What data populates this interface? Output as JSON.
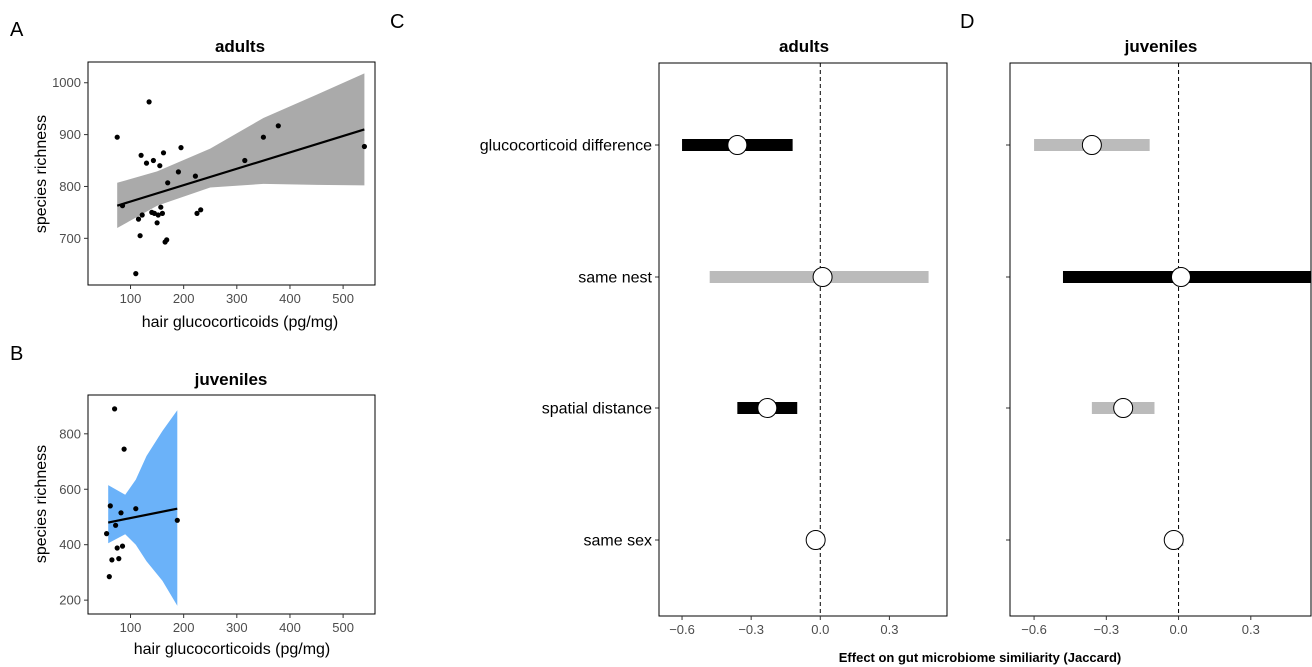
{
  "panel_labels": [
    "A",
    "B",
    "C",
    "D"
  ],
  "shared_xlabel": "Effect on gut microbiome similiarity (Jaccard)",
  "chart_data": [
    {
      "id": "A",
      "type": "scatter",
      "title": "adults",
      "xlabel": "hair glucocorticoids (pg/mg)",
      "ylabel": "species richness",
      "xlim": [
        20,
        560
      ],
      "ylim": [
        610,
        1040
      ],
      "xticks": [
        100,
        200,
        300,
        400,
        500
      ],
      "yticks": [
        700,
        800,
        900,
        1000
      ],
      "ribbon_color": "#aaaaaa",
      "points": [
        [
          75,
          895
        ],
        [
          85,
          763
        ],
        [
          110,
          632
        ],
        [
          115,
          737
        ],
        [
          118,
          705
        ],
        [
          120,
          860
        ],
        [
          122,
          745
        ],
        [
          130,
          845
        ],
        [
          135,
          963
        ],
        [
          140,
          750
        ],
        [
          143,
          850
        ],
        [
          145,
          748
        ],
        [
          150,
          730
        ],
        [
          152,
          745
        ],
        [
          155,
          840
        ],
        [
          157,
          760
        ],
        [
          160,
          748
        ],
        [
          162,
          865
        ],
        [
          165,
          693
        ],
        [
          168,
          697
        ],
        [
          170,
          807
        ],
        [
          190,
          828
        ],
        [
          195,
          875
        ],
        [
          222,
          820
        ],
        [
          225,
          748
        ],
        [
          232,
          755
        ],
        [
          315,
          850
        ],
        [
          350,
          895
        ],
        [
          378,
          917
        ],
        [
          540,
          877
        ]
      ],
      "fit": [
        [
          75,
          763
        ],
        [
          540,
          910
        ]
      ],
      "ribbon": [
        [
          75,
          720,
          807
        ],
        [
          150,
          763,
          829
        ],
        [
          250,
          798,
          873
        ],
        [
          350,
          805,
          932
        ],
        [
          450,
          803,
          977
        ],
        [
          540,
          802,
          1018
        ]
      ]
    },
    {
      "id": "B",
      "type": "scatter",
      "title": "juveniles",
      "xlabel": "hair glucocorticoids (pg/mg)",
      "ylabel": "species richness",
      "xlim": [
        20,
        560
      ],
      "ylim": [
        150,
        940
      ],
      "xticks": [
        100,
        200,
        300,
        400,
        500
      ],
      "yticks": [
        200,
        400,
        600,
        800
      ],
      "ribbon_color": "#6bb2f9",
      "points": [
        [
          55,
          440
        ],
        [
          60,
          285
        ],
        [
          62,
          540
        ],
        [
          65,
          345
        ],
        [
          70,
          890
        ],
        [
          72,
          470
        ],
        [
          75,
          388
        ],
        [
          78,
          350
        ],
        [
          82,
          515
        ],
        [
          85,
          395
        ],
        [
          88,
          745
        ],
        [
          110,
          530
        ],
        [
          188,
          488
        ]
      ],
      "fit": [
        [
          58,
          480
        ],
        [
          188,
          530
        ]
      ],
      "ribbon": [
        [
          58,
          405,
          615
        ],
        [
          90,
          438,
          580
        ],
        [
          110,
          400,
          635
        ],
        [
          130,
          340,
          720
        ],
        [
          160,
          270,
          810
        ],
        [
          188,
          180,
          885
        ]
      ]
    },
    {
      "id": "C",
      "type": "scatter",
      "title": "adults",
      "xlim": [
        -0.7,
        0.55
      ],
      "xticks": [
        -0.6,
        -0.3,
        0.0,
        0.3
      ],
      "xticklabels": [
        "−0.6",
        "−0.3",
        "0.0",
        "0.3"
      ],
      "categories": [
        "glucocorticoid difference",
        "same nest",
        "spatial distance",
        "same sex"
      ],
      "estimates": [
        -0.36,
        0.01,
        -0.23,
        -0.02
      ],
      "ci_low": [
        -0.6,
        -0.48,
        -0.36,
        -0.04
      ],
      "ci_high": [
        -0.12,
        0.47,
        -0.1,
        0.02
      ],
      "bar_colors": [
        "#000000",
        "#bbbbbb",
        "#000000",
        "#bbbbbb"
      ],
      "ref_line": 0
    },
    {
      "id": "D",
      "type": "scatter",
      "title": "juveniles",
      "xlim": [
        -0.7,
        0.55
      ],
      "xticks": [
        -0.6,
        -0.3,
        0.0,
        0.3
      ],
      "xticklabels": [
        "−0.6",
        "−0.3",
        "0.0",
        "0.3"
      ],
      "categories": [
        "glucocorticoid difference",
        "same nest",
        "spatial distance",
        "same sex"
      ],
      "estimates": [
        -0.36,
        0.01,
        -0.23,
        -0.02
      ],
      "ci_low": [
        -0.6,
        -0.48,
        -0.36,
        -0.04
      ],
      "ci_high": [
        -0.12,
        0.55,
        -0.1,
        0.02
      ],
      "bar_colors": [
        "#bbbbbb",
        "#000000",
        "#bbbbbb",
        "#bbbbbb"
      ],
      "ref_line": 0
    }
  ]
}
